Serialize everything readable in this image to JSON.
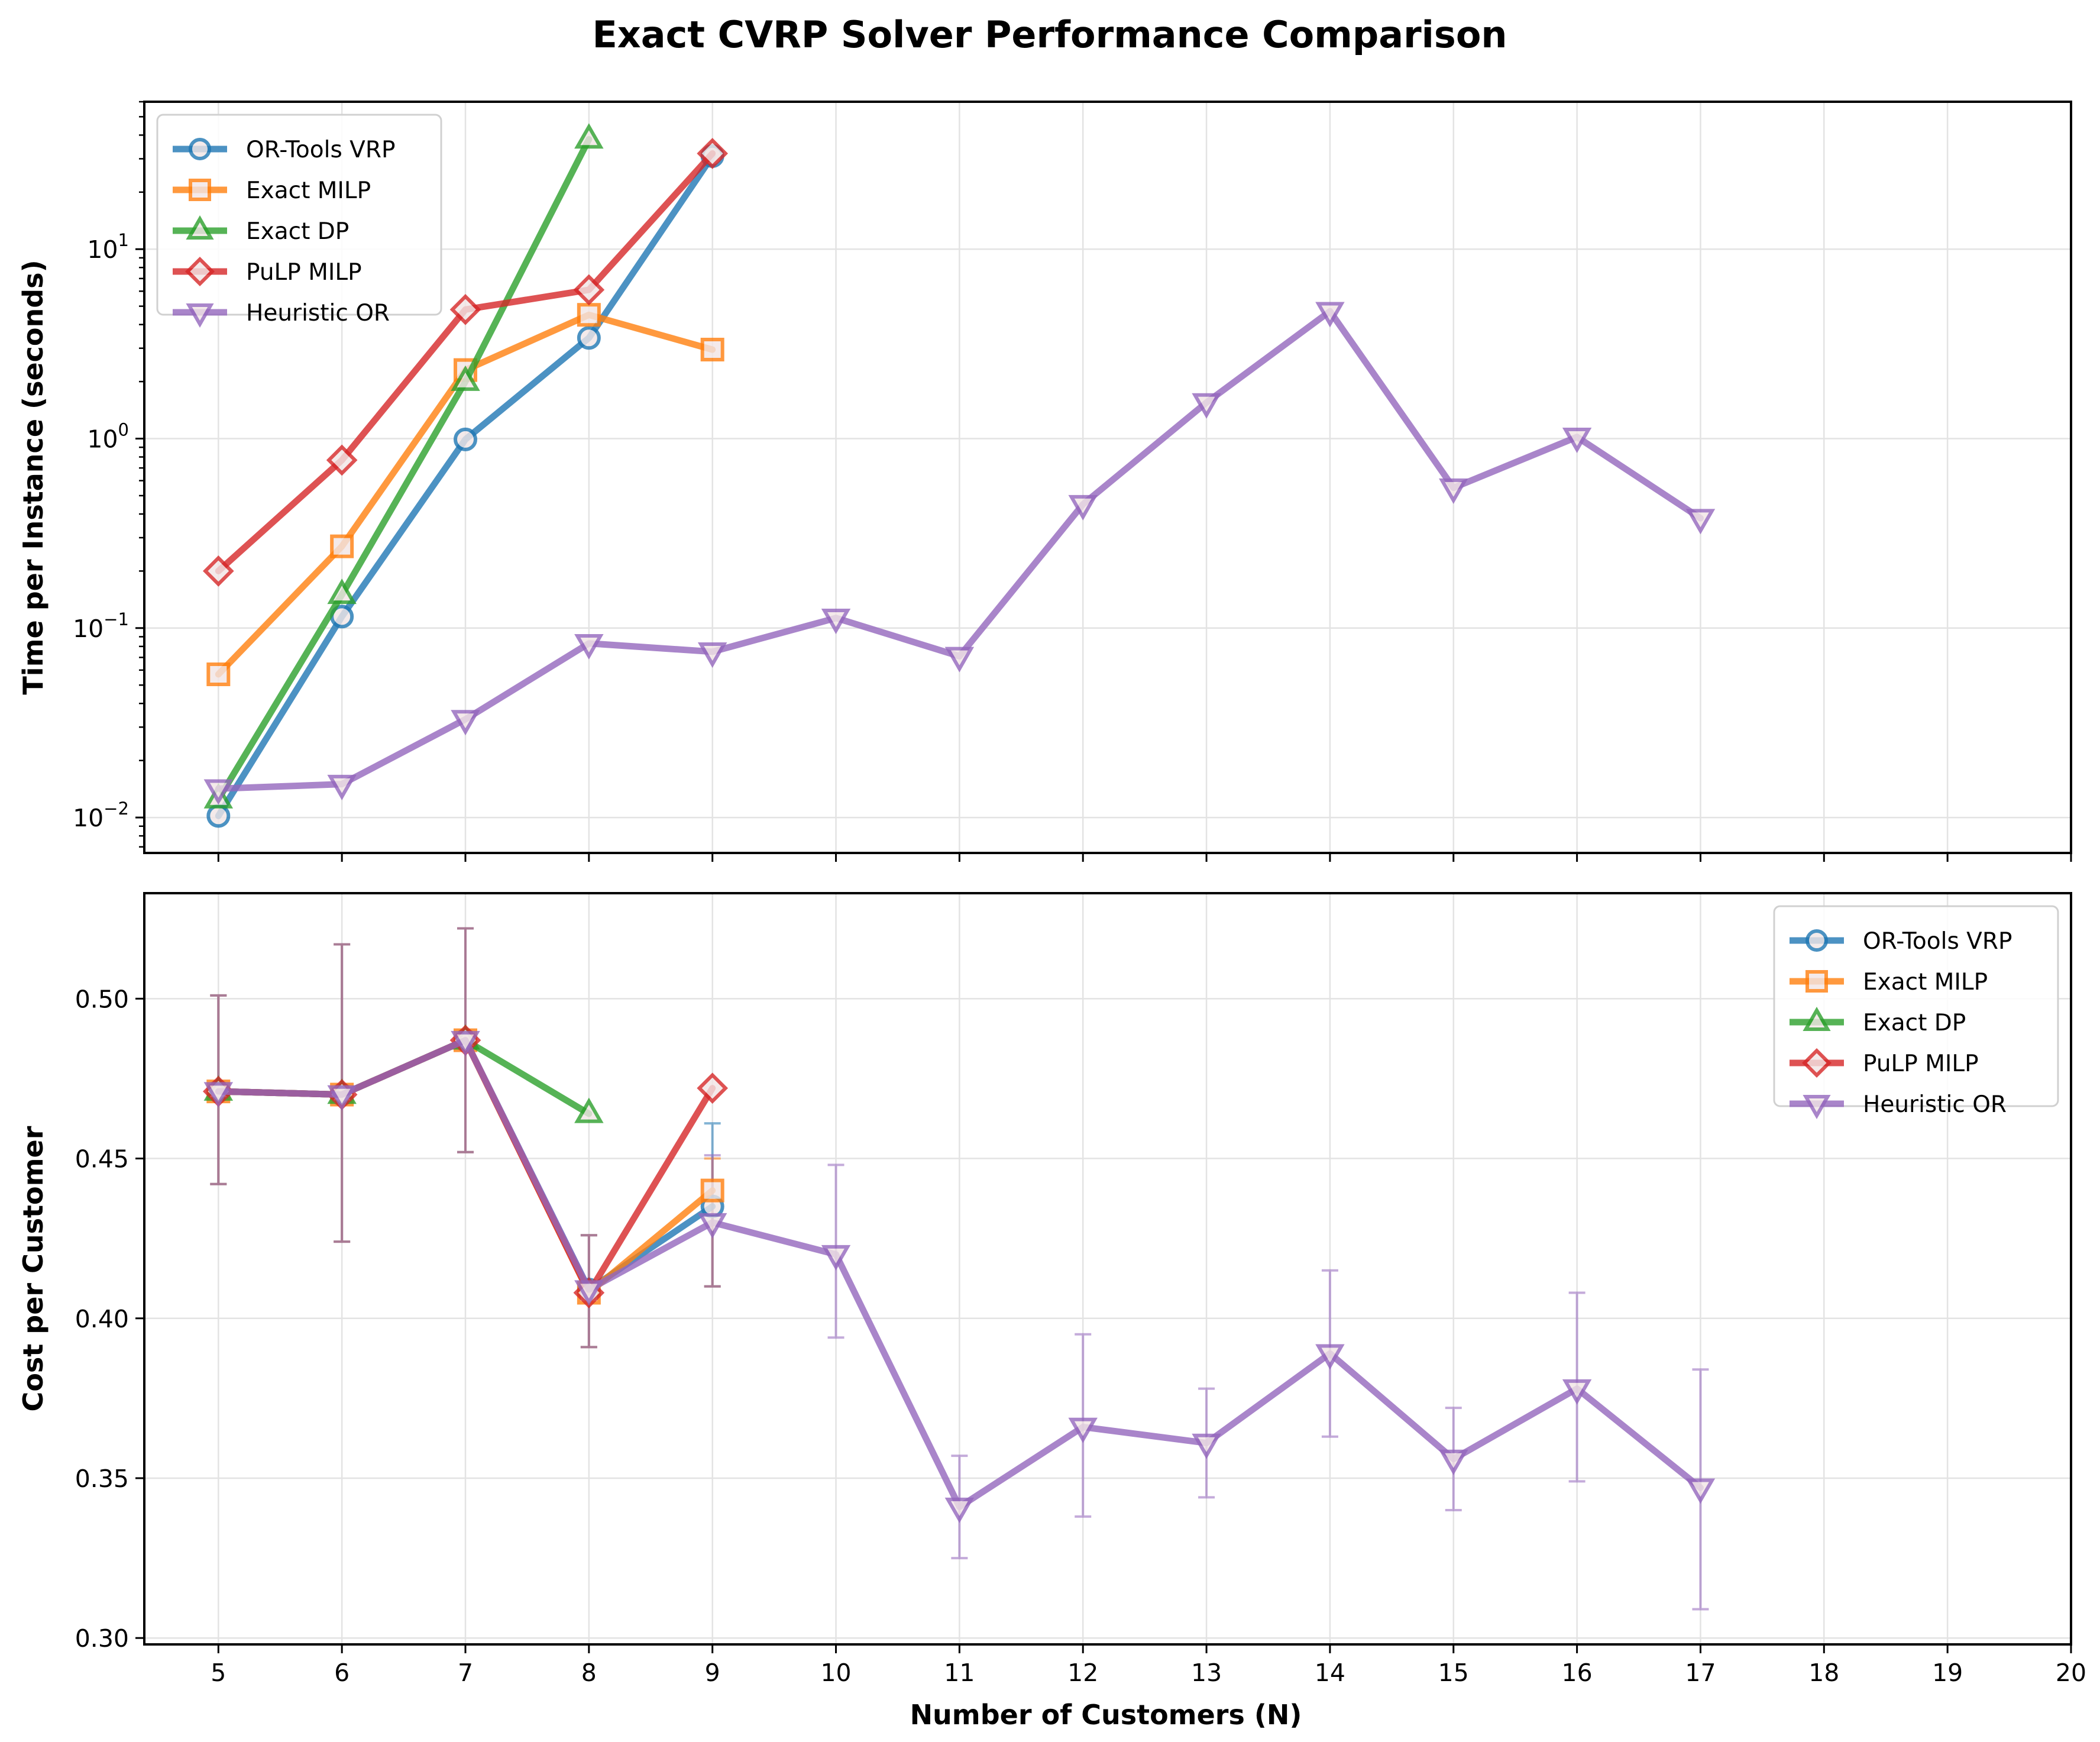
{
  "chart_data": {
    "type": "line",
    "title": "Exact CVRP Solver Performance Comparison",
    "xlabel": "Number of Customers (N)",
    "x_ticks": [
      "5",
      "6",
      "7",
      "8",
      "9",
      "10",
      "11",
      "12",
      "13",
      "14",
      "15",
      "16",
      "17",
      "18",
      "19",
      "20"
    ],
    "xlim": [
      4.4,
      20
    ],
    "grid": true,
    "colors": {
      "OR-Tools VRP": "#1f77b4",
      "Exact MILP": "#ff7f0e",
      "Exact DP": "#2ca02c",
      "PuLP MILP": "#d62728",
      "Heuristic OR": "#9467bd"
    },
    "markers": {
      "OR-Tools VRP": "circle",
      "Exact MILP": "square",
      "Exact DP": "triangle-up",
      "PuLP MILP": "diamond",
      "Heuristic OR": "triangle-down"
    },
    "panels": [
      {
        "ylabel": "Time per Instance (seconds)",
        "yscale": "log",
        "ylim": [
          0.0065,
          60
        ],
        "y_ticks": [
          {
            "value": 0.01,
            "base": "10",
            "exp": "−2"
          },
          {
            "value": 0.1,
            "base": "10",
            "exp": "−1"
          },
          {
            "value": 1,
            "base": "10",
            "exp": "0"
          },
          {
            "value": 10,
            "base": "10",
            "exp": "1"
          }
        ],
        "legend_position": "upper-left",
        "series": [
          {
            "name": "OR-Tools VRP",
            "x": [
              5,
              6,
              7,
              8,
              9
            ],
            "y": [
              0.0102,
              0.115,
              0.99,
              3.4,
              31
            ]
          },
          {
            "name": "Exact MILP",
            "x": [
              5,
              6,
              7,
              8,
              9
            ],
            "y": [
              0.057,
              0.27,
              2.3,
              4.5,
              2.95
            ]
          },
          {
            "name": "Exact DP",
            "x": [
              5,
              6,
              7,
              8
            ],
            "y": [
              0.0125,
              0.15,
              2.0,
              38
            ]
          },
          {
            "name": "PuLP MILP",
            "x": [
              5,
              6,
              7,
              8,
              9
            ],
            "y": [
              0.2,
              0.77,
              4.8,
              6.1,
              32
            ]
          },
          {
            "name": "Heuristic OR",
            "x": [
              5,
              6,
              7,
              8,
              9,
              10,
              11,
              12,
              13,
              14,
              15,
              16,
              17
            ],
            "y": [
              0.0142,
              0.015,
              0.033,
              0.083,
              0.075,
              0.113,
              0.071,
              0.45,
              1.55,
              4.7,
              0.55,
              1.02,
              0.38
            ]
          }
        ]
      },
      {
        "ylabel": "Cost per Customer",
        "yscale": "linear",
        "ylim": [
          0.298,
          0.533
        ],
        "y_ticks": [
          {
            "value": 0.3,
            "label": "0.30"
          },
          {
            "value": 0.35,
            "label": "0.35"
          },
          {
            "value": 0.4,
            "label": "0.40"
          },
          {
            "value": 0.45,
            "label": "0.45"
          },
          {
            "value": 0.5,
            "label": "0.50"
          }
        ],
        "legend_position": "upper-right",
        "series": [
          {
            "name": "OR-Tools VRP",
            "x": [
              5,
              6,
              7,
              8,
              9
            ],
            "y": [
              0.471,
              0.47,
              0.487,
              0.409,
              0.435
            ],
            "err_low": [
              0.442,
              0.424,
              0.452,
              0.391,
              0.41
            ],
            "err_high": [
              0.501,
              0.517,
              0.522,
              0.426,
              0.461
            ]
          },
          {
            "name": "Exact MILP",
            "x": [
              5,
              6,
              7,
              8,
              9
            ],
            "y": [
              0.471,
              0.47,
              0.487,
              0.408,
              0.44
            ],
            "err_low": [
              0.442,
              0.424,
              0.452,
              0.391,
              0.41
            ],
            "err_high": [
              0.501,
              0.517,
              0.522,
              0.426,
              0.45
            ]
          },
          {
            "name": "Exact DP",
            "x": [
              5,
              6,
              7,
              8
            ],
            "y": [
              0.471,
              0.47,
              0.487,
              0.464
            ]
          },
          {
            "name": "PuLP MILP",
            "x": [
              5,
              6,
              7,
              8,
              9
            ],
            "y": [
              0.471,
              0.47,
              0.487,
              0.408,
              0.472
            ]
          },
          {
            "name": "Heuristic OR",
            "x": [
              5,
              6,
              7,
              8,
              9,
              10,
              11,
              12,
              13,
              14,
              15,
              16,
              17
            ],
            "y": [
              0.471,
              0.47,
              0.487,
              0.409,
              0.43,
              0.42,
              0.341,
              0.366,
              0.361,
              0.389,
              0.356,
              0.378,
              0.347
            ],
            "err_low": [
              0.442,
              0.424,
              0.452,
              0.391,
              0.41,
              0.394,
              0.325,
              0.338,
              0.344,
              0.363,
              0.34,
              0.349,
              0.309
            ],
            "err_high": [
              0.501,
              0.517,
              0.522,
              0.426,
              0.451,
              0.448,
              0.357,
              0.395,
              0.378,
              0.415,
              0.372,
              0.408,
              0.384
            ]
          }
        ]
      }
    ]
  }
}
